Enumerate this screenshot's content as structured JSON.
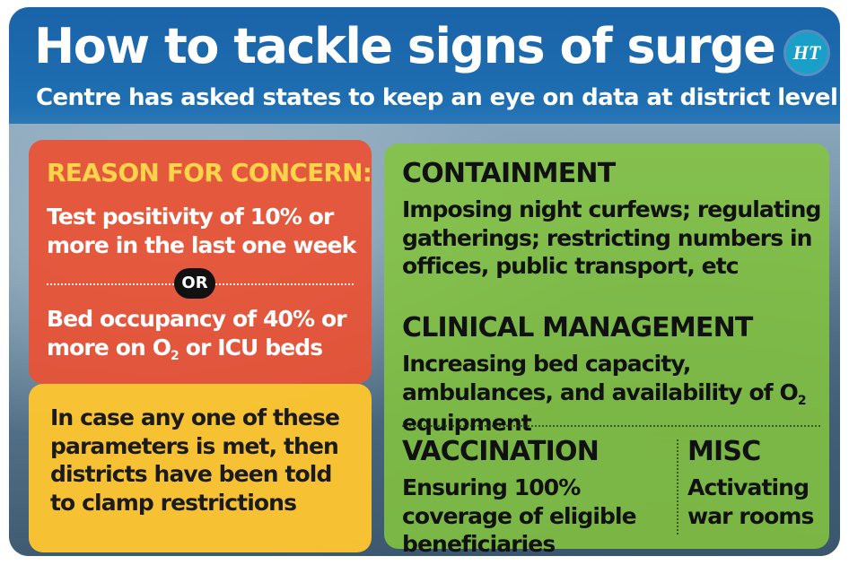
{
  "header": {
    "title": "How to tackle signs of surge",
    "subtitle": "Centre has asked states to keep an eye on data at district level",
    "logo_text": "HT"
  },
  "concern": {
    "heading": "REASON FOR CONCERN:",
    "criterion_1": "Test positivity of 10% or more in the last one week",
    "separator": "OR",
    "criterion_2_prefix": "Bed occupancy of 40% or more on O",
    "criterion_2_sub": "2",
    "criterion_2_suffix": " or ICU beds"
  },
  "note": {
    "text": "In case any one of these parameters is met, then districts have been told to clamp restrictions"
  },
  "sections": {
    "containment": {
      "heading": "CONTAINMENT",
      "text": "Imposing night curfews; regulating gatherings; restricting numbers in offices, public transport, etc"
    },
    "clinical": {
      "heading": "CLINICAL MANAGEMENT",
      "text_prefix": "Increasing bed capacity, ambulances, and availability of O",
      "text_sub": "2",
      "text_suffix": " equipment"
    },
    "vaccination": {
      "heading": "VACCINATION",
      "text": "Ensuring 100% coverage of eligible beneficiaries"
    },
    "misc": {
      "heading": "MISC",
      "text": "Activating war rooms"
    }
  },
  "colors": {
    "header_blue": "#1a63a8",
    "concern_red": "#e95234",
    "concern_heading_yellow": "#ffd34a",
    "note_yellow": "#fcc430",
    "panel_green": "#84c440",
    "logo_teal": "#1aa0c8"
  }
}
